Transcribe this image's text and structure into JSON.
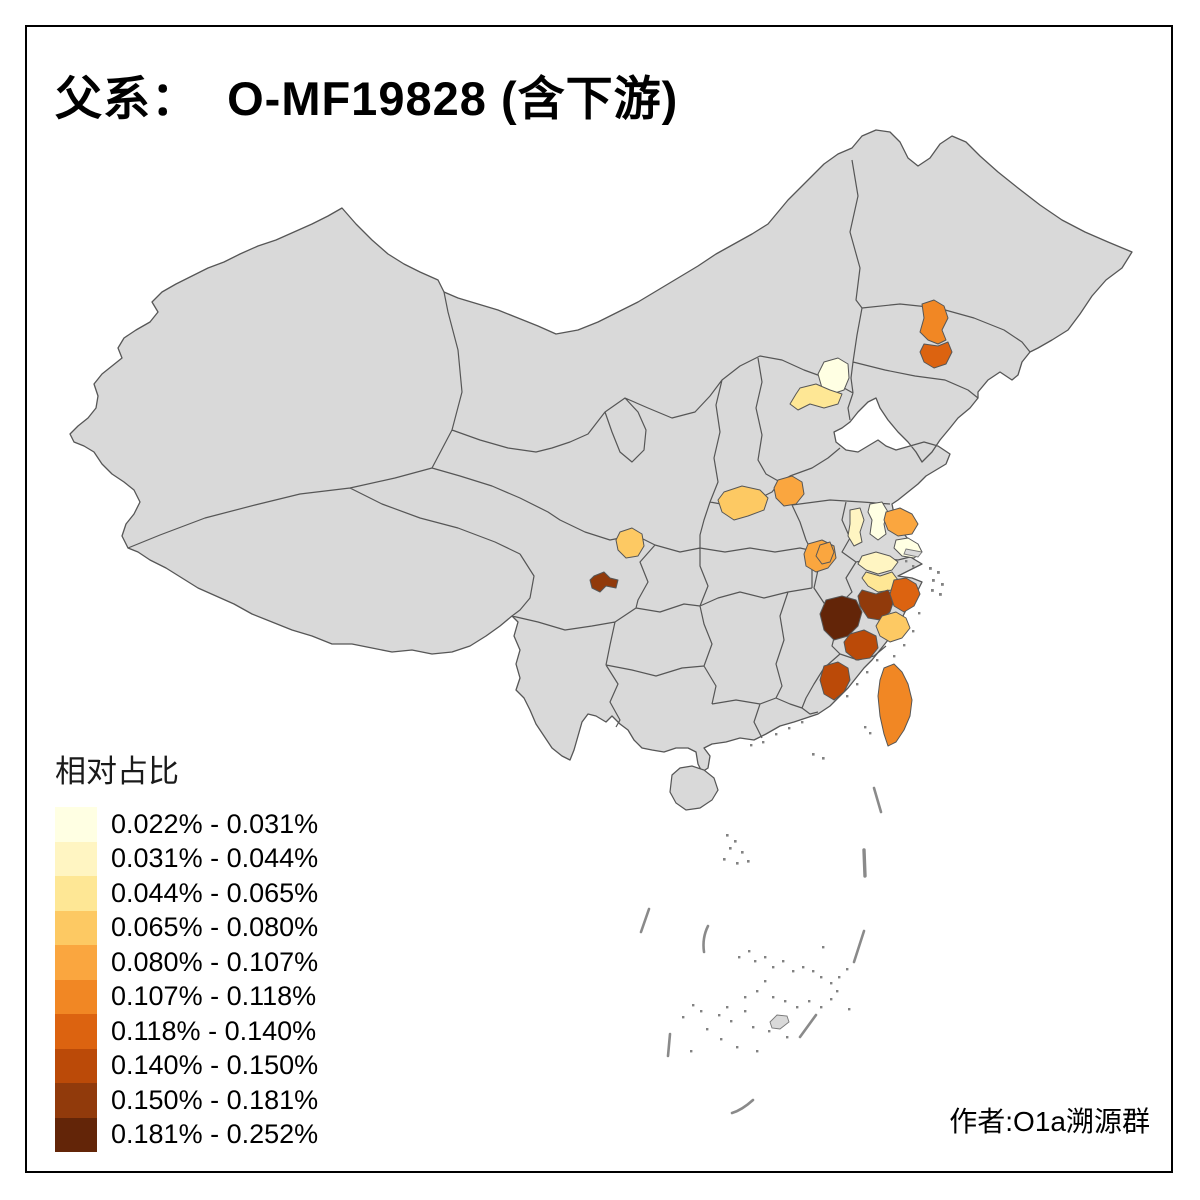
{
  "frame": {
    "title": "父系：  O-MF19828 (含下游)",
    "author_credit": "作者:O1a溯源群"
  },
  "legend": {
    "title": "相对占比",
    "classes": [
      {
        "label": "0.022% - 0.031%",
        "color": "#FFFFE3"
      },
      {
        "label": "0.031% - 0.044%",
        "color": "#FFF5C2"
      },
      {
        "label": "0.044% - 0.065%",
        "color": "#FEE795"
      },
      {
        "label": "0.065% - 0.080%",
        "color": "#FDC963"
      },
      {
        "label": "0.080% - 0.107%",
        "color": "#FAA63F"
      },
      {
        "label": "0.107% - 0.118%",
        "color": "#F18724"
      },
      {
        "label": "0.118% - 0.140%",
        "color": "#DC6310"
      },
      {
        "label": "0.140% - 0.150%",
        "color": "#BB4A08"
      },
      {
        "label": "0.150% - 0.181%",
        "color": "#913A0B"
      },
      {
        "label": "0.181% - 0.252%",
        "color": "#632508"
      }
    ]
  },
  "map": {
    "type": "choropleth",
    "area": "China, province and prefecture level",
    "base_fill": "#D9D9D9",
    "boundary_color": "#565656",
    "sea_color": "#FFFFFF",
    "dash_line_color": "#8A8A8A",
    "islet_dot_color": "#828282",
    "regions": [
      {
        "id": "jilin-north",
        "class_index": 5
      },
      {
        "id": "jilin-south",
        "class_index": 6
      },
      {
        "id": "beijing",
        "class_index": 0
      },
      {
        "id": "hebei-central",
        "class_index": 2
      },
      {
        "id": "henan-southwest",
        "class_index": 3
      },
      {
        "id": "henan-central",
        "class_index": 4
      },
      {
        "id": "hubei-east",
        "class_index": 4
      },
      {
        "id": "sichuan-chengdu",
        "class_index": 3
      },
      {
        "id": "sichuan-south",
        "class_index": 8
      },
      {
        "id": "anhui-east",
        "class_index": 1
      },
      {
        "id": "jiangsu-central",
        "class_index": 0
      },
      {
        "id": "jiangsu-nantong",
        "class_index": 4
      },
      {
        "id": "anhui-southwest",
        "class_index": 4
      },
      {
        "id": "jiangsu-south-shanghai",
        "class_index": 0
      },
      {
        "id": "zhejiang-north",
        "class_index": 1
      },
      {
        "id": "zhejiang-hangzhou",
        "class_index": 2
      },
      {
        "id": "zhejiang-shaoxing",
        "class_index": 8
      },
      {
        "id": "zhejiang-ningbo",
        "class_index": 6
      },
      {
        "id": "zhejiang-west",
        "class_index": 9
      },
      {
        "id": "zhejiang-taizhou",
        "class_index": 3
      },
      {
        "id": "zhejiang-wenzhou",
        "class_index": 7
      },
      {
        "id": "fujian-east",
        "class_index": 7
      },
      {
        "id": "taiwan",
        "class_index": 5
      }
    ]
  }
}
